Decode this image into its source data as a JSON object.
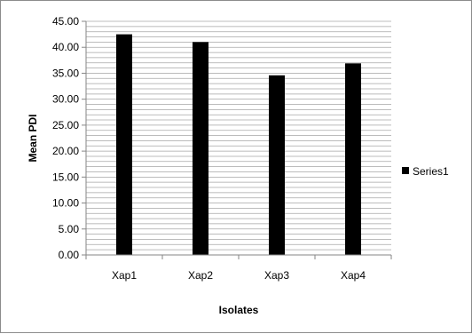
{
  "chart_data": {
    "type": "bar",
    "categories": [
      "Xap1",
      "Xap2",
      "Xap3",
      "Xap4"
    ],
    "series": [
      {
        "name": "Series1",
        "values": [
          42.5,
          41.0,
          34.6,
          36.9
        ],
        "color": "#000000"
      }
    ],
    "yticks": [
      "0.00",
      "5.00",
      "10.00",
      "15.00",
      "20.00",
      "25.00",
      "30.00",
      "35.00",
      "40.00",
      "45.00"
    ],
    "ylim": [
      0,
      45
    ],
    "minor_grid_step": 1,
    "xlabel": "Isolates",
    "ylabel": "Mean PDI",
    "title": "",
    "legend_position": "right",
    "grid": true,
    "gridline_color": "#a6a6a6"
  }
}
